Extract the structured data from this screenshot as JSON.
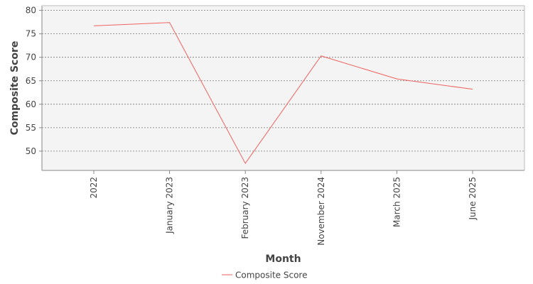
{
  "chart_data": {
    "type": "line",
    "title": "",
    "xlabel": "Month",
    "ylabel": "Composite Score",
    "categories": [
      "2022",
      "January 2023",
      "February 2023",
      "November 2024",
      "March 2025",
      "June 2025"
    ],
    "series": [
      {
        "name": "Composite Score",
        "values": [
          76.7,
          77.4,
          47.4,
          70.3,
          65.4,
          63.2
        ],
        "color": "#f0625f"
      }
    ],
    "ylim": [
      45.9,
      81.0
    ],
    "yticks": [
      50,
      55,
      60,
      65,
      70,
      75,
      80
    ],
    "grid": true,
    "legend_position": "bottom",
    "plot_background": "#f4f4f4"
  }
}
